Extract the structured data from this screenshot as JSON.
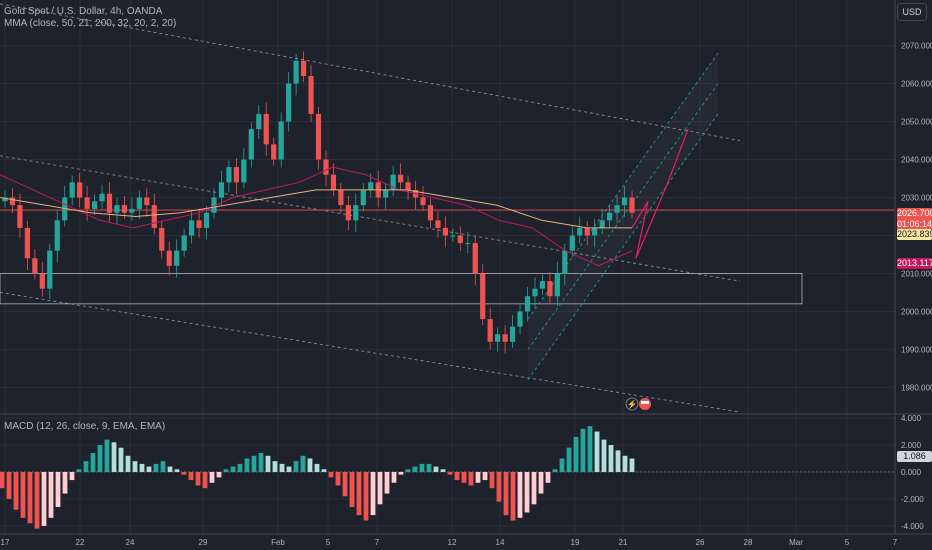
{
  "header": {
    "symbol_line": "Gold Spot / U.S. Dollar, 4h, OANDA",
    "mma_line": "MMA (close, 50, 21, 200, 32, 20, 2, 20)",
    "currency_button": "USD"
  },
  "macd_panel": {
    "label": "MACD (12, 26, close, 9, EMA, EMA)"
  },
  "price_tags": {
    "last_price": "2026.700",
    "countdown": "01:06:14",
    "ma_value": "2023.839",
    "ma2_value": "2013.117",
    "macd_value": "1.086"
  },
  "colors": {
    "background": "#1e222d",
    "bull": "#26a69a",
    "bear": "#ef5350",
    "ma_red": "#c2185b",
    "ma_orange": "#e8b07a",
    "channel": "#26a69a",
    "projection": "#e91e63"
  },
  "chart_data": [
    {
      "type": "candlestick",
      "title": "Gold Spot / U.S. Dollar, 4h, OANDA",
      "x_tick_labels": [
        "17",
        "22",
        "24",
        "29",
        "Feb",
        "5",
        "7",
        "12",
        "14",
        "19",
        "21",
        "26",
        "28",
        "Mar",
        "5",
        "7"
      ],
      "y_tick_labels": [
        "2070.000",
        "2060.000",
        "2050.000",
        "2040.000",
        "2030.000",
        "2020.000",
        "2010.000",
        "2000.000",
        "1990.000",
        "1980.000"
      ],
      "ylim": [
        1973,
        2082
      ],
      "close_series_approx": [
        2030,
        2028,
        2022,
        2014,
        2010,
        2006,
        2016,
        2024,
        2030,
        2034,
        2030,
        2027,
        2029,
        2031,
        2026,
        2028,
        2026,
        2027,
        2030,
        2028,
        2022,
        2016,
        2012,
        2016,
        2020,
        2024,
        2022,
        2026,
        2030,
        2034,
        2038,
        2034,
        2040,
        2048,
        2052,
        2044,
        2040,
        2050,
        2060,
        2066,
        2062,
        2052,
        2040,
        2036,
        2032,
        2028,
        2024,
        2028,
        2032,
        2034,
        2030,
        2032,
        2036,
        2034,
        2032,
        2030,
        2028,
        2024,
        2022,
        2020,
        2020,
        2018,
        2018,
        2010,
        1998,
        1992,
        1994,
        1992,
        1996,
        2000,
        2004,
        2006,
        2008,
        2004,
        2010,
        2016,
        2020,
        2022,
        2020,
        2022,
        2024,
        2026,
        2028,
        2030,
        2026
      ],
      "moving_averages": [
        {
          "color": "#c2185b",
          "values_approx": [
            2036,
            2032,
            2028,
            2024,
            2022,
            2024,
            2026,
            2030,
            2032,
            2034,
            2038,
            2036,
            2032,
            2030,
            2028,
            2024,
            2022,
            2016,
            2012,
            2016
          ]
        },
        {
          "color": "#e8b07a",
          "values_approx": [
            2030,
            2028,
            2026,
            2025,
            2026,
            2028,
            2030,
            2032,
            2032,
            2032,
            2030,
            2028,
            2024,
            2022,
            2022
          ]
        }
      ],
      "horizontal_zone": [
        2002,
        2010
      ]
    },
    {
      "type": "bar",
      "title": "MACD (12, 26, close, 9, EMA, EMA)",
      "y_tick_labels": [
        "4.000",
        "2.000",
        "0.000",
        "-2.000",
        "-4.000"
      ],
      "ylim": [
        -4.6,
        4.3
      ],
      "values": [
        -1.2,
        -2.0,
        -2.8,
        -3.4,
        -3.8,
        -4.2,
        -4.0,
        -3.4,
        -2.6,
        -1.6,
        -0.6,
        0.2,
        0.8,
        1.4,
        2.0,
        2.4,
        2.2,
        1.8,
        1.2,
        0.8,
        0.6,
        0.4,
        0.6,
        0.8,
        0.4,
        0.2,
        -0.2,
        -0.6,
        -1.0,
        -1.2,
        -0.8,
        -0.4,
        0.2,
        0.4,
        0.6,
        1.0,
        1.2,
        1.4,
        1.2,
        0.8,
        0.6,
        0.4,
        0.8,
        1.2,
        1.0,
        0.6,
        0.2,
        -0.4,
        -1.0,
        -1.8,
        -2.6,
        -3.2,
        -3.6,
        -3.2,
        -2.4,
        -1.6,
        -0.8,
        -0.2,
        0.2,
        0.4,
        0.6,
        0.6,
        0.4,
        0.2,
        -0.2,
        -0.6,
        -0.8,
        -1.0,
        -0.8,
        -0.6,
        -1.2,
        -2.2,
        -3.2,
        -3.6,
        -3.4,
        -3.0,
        -2.4,
        -1.6,
        -0.8,
        0.2,
        1.0,
        1.8,
        2.6,
        3.2,
        3.4,
        3.0,
        2.4,
        2.0,
        1.6,
        1.2,
        1.0
      ]
    }
  ]
}
